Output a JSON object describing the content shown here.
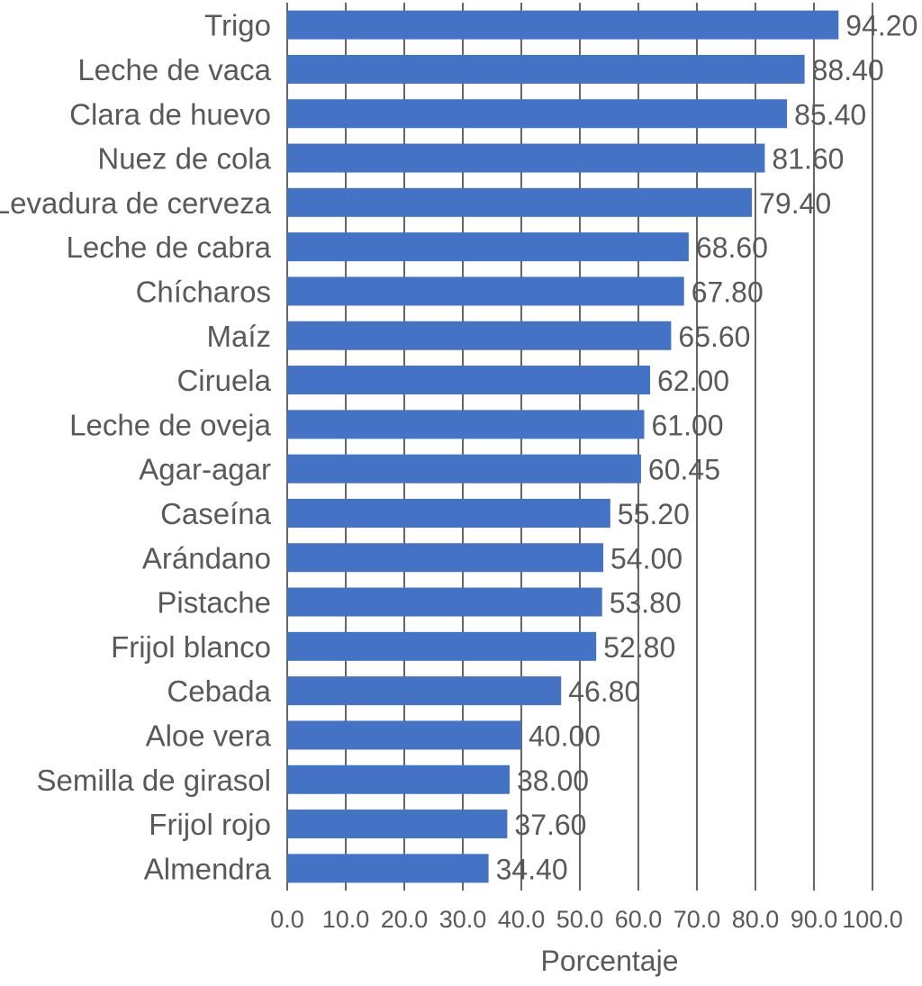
{
  "chart_data": {
    "type": "bar",
    "orientation": "horizontal",
    "categories": [
      "Trigo",
      "Leche de vaca",
      "Clara de huevo",
      "Nuez de cola",
      "Levadura de cerveza",
      "Leche de cabra",
      "Chícharos",
      "Maíz",
      "Ciruela",
      "Leche de oveja",
      "Agar-agar",
      "Caseína",
      "Arándano",
      "Pistache",
      "Frijol blanco",
      "Cebada",
      "Aloe vera",
      "Semilla de girasol",
      "Frijol rojo",
      "Almendra"
    ],
    "values": [
      94.2,
      88.4,
      85.4,
      81.6,
      79.4,
      68.6,
      67.8,
      65.6,
      62.0,
      61.0,
      60.45,
      55.2,
      54.0,
      53.8,
      52.8,
      46.8,
      40.0,
      38.0,
      37.6,
      34.4
    ],
    "value_labels": [
      "94.20",
      "88.40",
      "85.40",
      "81.60",
      "79.40",
      "68.60",
      "67.80",
      "65.60",
      "62.00",
      "61.00",
      "60.45",
      "55.20",
      "54.00",
      "53.80",
      "52.80",
      "46.80",
      "40.00",
      "38.00",
      "37.60",
      "34.40"
    ],
    "xticks": [
      0,
      10,
      20,
      30,
      40,
      50,
      60,
      70,
      80,
      90,
      100
    ],
    "xtick_labels": [
      "0.0",
      "10.0",
      "20.0",
      "30.0",
      "40.0",
      "50.0",
      "60.0",
      "70.0",
      "80.0",
      "90.0",
      "100.0"
    ],
    "xlim": [
      0,
      100
    ],
    "xlabel": "Porcentaje",
    "ylabel": "",
    "title": "",
    "grid": true,
    "bar_color": "#4472C4",
    "gridline_color": "#404040",
    "label_color": "#595959"
  }
}
